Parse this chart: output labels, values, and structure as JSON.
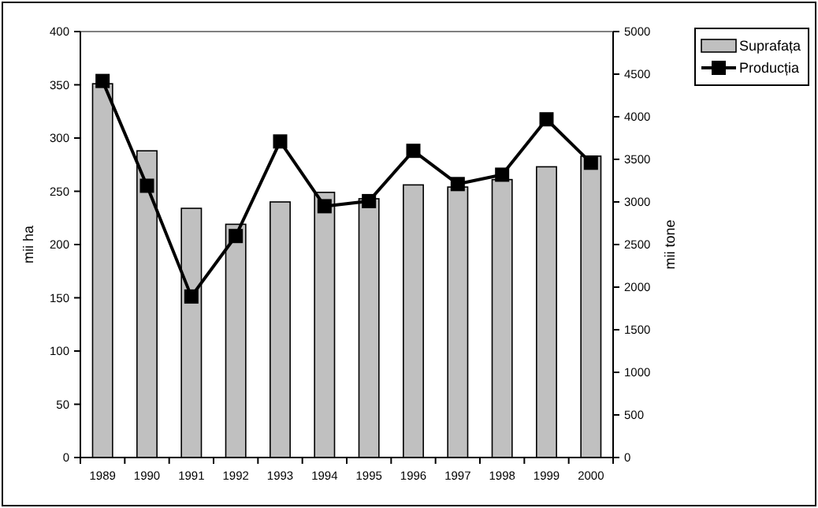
{
  "chart_data": {
    "type": "bar",
    "categories": [
      "1989",
      "1990",
      "1991",
      "1992",
      "1993",
      "1994",
      "1995",
      "1996",
      "1997",
      "1998",
      "1999",
      "2000"
    ],
    "series": [
      {
        "name": "Suprafața",
        "color": "#c0c0c0",
        "values": [
          351,
          288,
          234,
          219,
          240,
          249,
          243,
          256,
          254,
          261,
          273,
          283
        ]
      },
      {
        "name": "Producția",
        "type": "line",
        "axis": "y2",
        "color": "#000000",
        "marker": "square",
        "values": [
          4420,
          3190,
          1890,
          2600,
          3710,
          2950,
          3010,
          3600,
          3210,
          3320,
          3970,
          3460
        ]
      }
    ],
    "ylabel": "mii ha",
    "y2label": "mii tone",
    "ylim": [
      0,
      400
    ],
    "yticks": [
      0,
      50,
      100,
      150,
      200,
      250,
      300,
      350,
      400
    ],
    "y2lim": [
      0,
      5000
    ],
    "y2ticks": [
      0,
      500,
      1000,
      1500,
      2000,
      2500,
      3000,
      3500,
      4000,
      4500,
      5000
    ],
    "legend": "top right",
    "grid": false
  }
}
